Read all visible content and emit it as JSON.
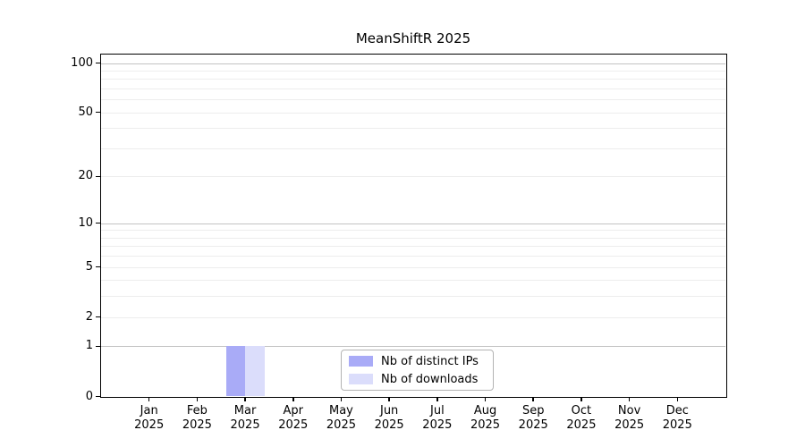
{
  "figure": {
    "title": "MeanShiftR 2025"
  },
  "legend": {
    "items": [
      {
        "label": "Nb of distinct IPs",
        "color": "#a9abf7"
      },
      {
        "label": "Nb of downloads",
        "color": "#dbddfb"
      }
    ]
  },
  "chart_data": {
    "type": "bar",
    "title": "MeanShiftR 2025",
    "x": {
      "months": [
        "Jan",
        "Feb",
        "Mar",
        "Apr",
        "May",
        "Jun",
        "Jul",
        "Aug",
        "Sep",
        "Oct",
        "Nov",
        "Dec"
      ],
      "year": "2025"
    },
    "series": [
      {
        "name": "Nb of distinct IPs",
        "color": "#a9abf7",
        "values": [
          0,
          0,
          1,
          0,
          0,
          0,
          0,
          0,
          0,
          0,
          0,
          0
        ]
      },
      {
        "name": "Nb of downloads",
        "color": "#dbddfb",
        "values": [
          0,
          0,
          1,
          0,
          0,
          0,
          0,
          0,
          0,
          0,
          0,
          0
        ]
      }
    ],
    "y_axis": {
      "scale": "log1p",
      "min": 0,
      "max": 100,
      "tick_values": [
        0,
        1,
        2,
        5,
        10,
        20,
        50,
        100
      ],
      "grid_major": [
        1,
        10,
        100
      ],
      "grid_minor": [
        2,
        3,
        4,
        5,
        6,
        7,
        8,
        9,
        20,
        30,
        40,
        50,
        60,
        70,
        80,
        90
      ]
    },
    "grid": true,
    "legend_position": "lower center",
    "colors": {
      "major_grid": "#c3c3c3",
      "minor_grid": "#ededed",
      "axis": "#000000",
      "legend_border": "#b3b3b3",
      "background": "#ffffff"
    }
  }
}
